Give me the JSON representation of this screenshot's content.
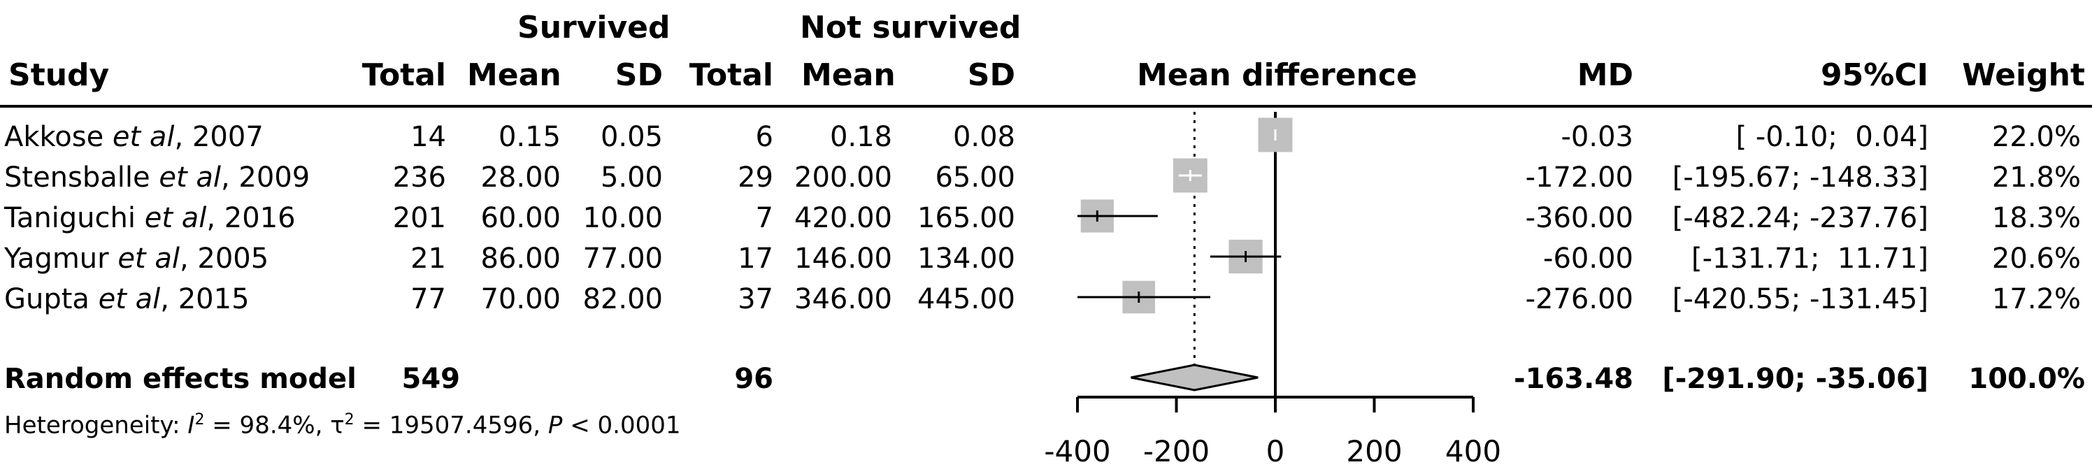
{
  "headers": {
    "survived": "Survived",
    "not_survived": "Not survived",
    "study": "Study",
    "total1": "Total",
    "mean1": "Mean",
    "sd1": "SD",
    "total2": "Total",
    "mean2": "Mean",
    "sd2": "SD",
    "mean_difference": "Mean difference",
    "md": "MD",
    "ci": "95%CI",
    "weight": "Weight"
  },
  "studies": [
    {
      "name": "Akkose",
      "etal": "et al",
      "year": ", 2007",
      "total1": "14",
      "mean1": "0.15",
      "sd1": "0.05",
      "total2": "6",
      "mean2": "0.18",
      "sd2": "0.08",
      "md": "-0.03",
      "ci": "[ -0.10;  0.04]",
      "weight": "22.0%"
    },
    {
      "name": "Stensballe",
      "etal": "et al",
      "year": ", 2009",
      "total1": "236",
      "mean1": "28.00",
      "sd1": "5.00",
      "total2": "29",
      "mean2": "200.00",
      "sd2": "65.00",
      "md": "-172.00",
      "ci": "[-195.67; -148.33]",
      "weight": "21.8%"
    },
    {
      "name": "Taniguchi",
      "etal": "et al",
      "year": ", 2016",
      "total1": "201",
      "mean1": "60.00",
      "sd1": "10.00",
      "total2": "7",
      "mean2": "420.00",
      "sd2": "165.00",
      "md": "-360.00",
      "ci": "[-482.24; -237.76]",
      "weight": "18.3%"
    },
    {
      "name": "Yagmur",
      "etal": "et al",
      "year": ", 2005",
      "total1": "21",
      "mean1": "86.00",
      "sd1": "77.00",
      "total2": "17",
      "mean2": "146.00",
      "sd2": "134.00",
      "md": "-60.00",
      "ci": "[-131.71;  11.71]",
      "weight": "20.6%"
    },
    {
      "name": "Gupta",
      "etal": "et al",
      "year": ", 2015",
      "total1": "77",
      "mean1": "70.00",
      "sd1": "82.00",
      "total2": "37",
      "mean2": "346.00",
      "sd2": "445.00",
      "md": "-276.00",
      "ci": "[-420.55; -131.45]",
      "weight": "17.2%"
    }
  ],
  "summary": {
    "label": "Random effects model",
    "total1": "549",
    "total2": "96",
    "md": "-163.48",
    "ci": "[-291.90; -35.06]",
    "weight": "100.0%"
  },
  "heterogeneity": {
    "prefix": "Heterogeneity: ",
    "i_symbol": "I",
    "i_sup": "2",
    "i_value": " = 98.4%, ",
    "tau_symbol": "τ",
    "tau_sup": "2",
    "tau_value": " = 19507.4596, ",
    "p_symbol": "P",
    "p_value": " < 0.0001"
  },
  "colors": {
    "square": "#c0c0c0",
    "diamond": "#c0c0c0",
    "line": "#000000"
  },
  "chart_data": {
    "type": "forest",
    "xlim": [
      -400,
      400
    ],
    "ticks": [
      -400,
      -200,
      0,
      200,
      400
    ],
    "reference_line": 0,
    "summary_line": -163.48,
    "points": [
      {
        "md": -0.03,
        "lo": -0.1,
        "hi": 0.04,
        "weight": 22.0
      },
      {
        "md": -172.0,
        "lo": -195.67,
        "hi": -148.33,
        "weight": 21.8
      },
      {
        "md": -360.0,
        "lo": -482.24,
        "hi": -237.76,
        "weight": 18.3
      },
      {
        "md": -60.0,
        "lo": -131.71,
        "hi": 11.71,
        "weight": 20.6
      },
      {
        "md": -276.0,
        "lo": -420.55,
        "hi": -131.45,
        "weight": 17.2
      }
    ],
    "summary": {
      "md": -163.48,
      "lo": -291.9,
      "hi": -35.06
    }
  }
}
